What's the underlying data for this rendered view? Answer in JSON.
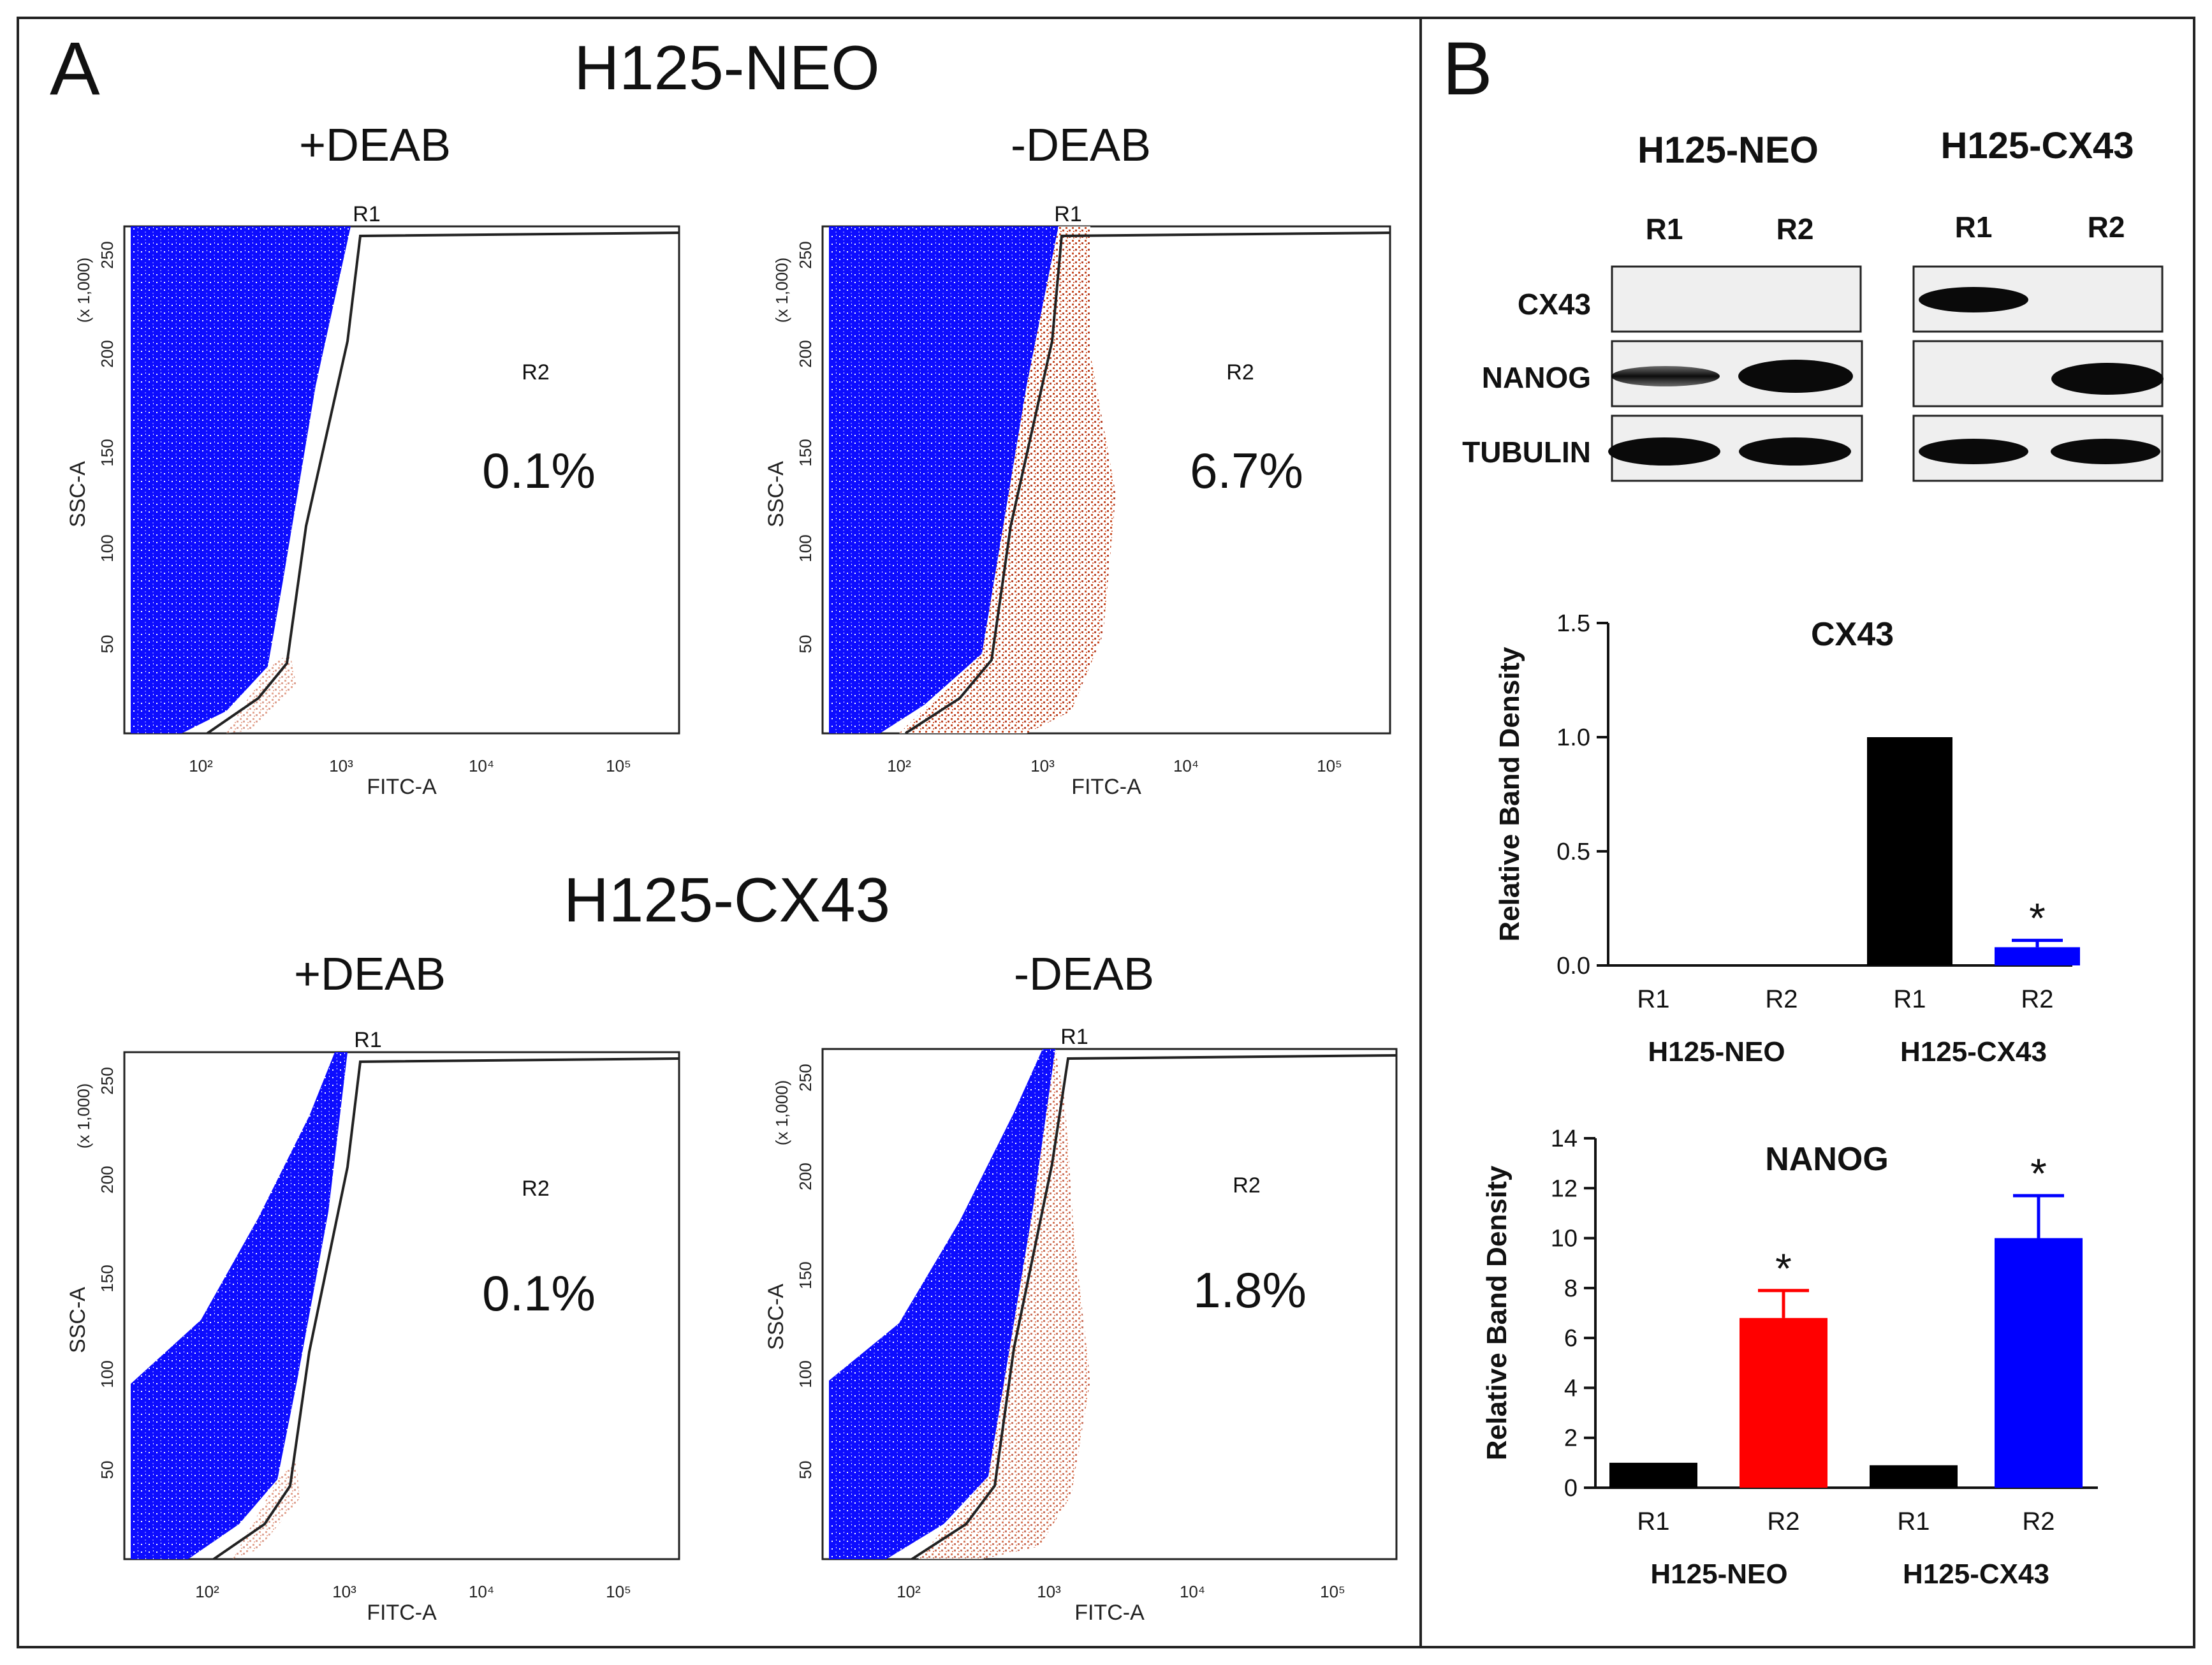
{
  "panels": {
    "a_label": "A",
    "b_label": "B"
  },
  "flow": {
    "cell_lines": [
      "H125-NEO",
      "H125-CX43"
    ],
    "conditions": [
      "+DEAB",
      "-DEAB"
    ],
    "x_axis_label": "FITC-A",
    "y_axis_label": "SSC-A",
    "y_scale_note": "(x 1,000)",
    "y_ticks": [
      "50",
      "100",
      "150",
      "200",
      "250"
    ],
    "x_ticks": [
      "10²",
      "10³",
      "10⁴",
      "10⁵"
    ],
    "gate_labels": [
      "R1",
      "R2"
    ],
    "plots": [
      {
        "cell_line": "H125-NEO",
        "condition": "+DEAB",
        "r2_percent": "0.1%",
        "r2_fraction": 0.001
      },
      {
        "cell_line": "H125-NEO",
        "condition": "-DEAB",
        "r2_percent": "6.7%",
        "r2_fraction": 0.067
      },
      {
        "cell_line": "H125-CX43",
        "condition": "+DEAB",
        "r2_percent": "0.1%",
        "r2_fraction": 0.001
      },
      {
        "cell_line": "H125-CX43",
        "condition": "-DEAB",
        "r2_percent": "1.8%",
        "r2_fraction": 0.018
      }
    ],
    "colors": {
      "r1_population": "#1a1aff",
      "r2_population": "#c8502a"
    }
  },
  "western_blot": {
    "groups": [
      "H125-NEO",
      "H125-CX43"
    ],
    "lanes": [
      "R1",
      "R2"
    ],
    "rows": [
      "CX43",
      "NANOG",
      "TUBULIN"
    ]
  },
  "chart_data": [
    {
      "type": "bar",
      "title": "CX43",
      "ylabel": "Relative Band Density",
      "xlabel": "",
      "ylim": [
        0,
        1.5
      ],
      "yticks": [
        0.0,
        0.5,
        1.0,
        1.5
      ],
      "ytick_labels": [
        "0.0",
        "0.5",
        "1.0",
        "1.5"
      ],
      "categories": [
        "R1",
        "R2",
        "R1",
        "R2"
      ],
      "groups": [
        "H125-NEO",
        "H125-CX43"
      ],
      "values": [
        0,
        0,
        1.0,
        0.08
      ],
      "errors": [
        0,
        0,
        0,
        0.03
      ],
      "significance": [
        "",
        "",
        "",
        "*"
      ],
      "colors": [
        "#000000",
        "#ff0000",
        "#000000",
        "#0000ff"
      ]
    },
    {
      "type": "bar",
      "title": "NANOG",
      "ylabel": "Relative Band Density",
      "xlabel": "",
      "ylim": [
        0,
        14
      ],
      "yticks": [
        0,
        2,
        4,
        6,
        8,
        10,
        12,
        14
      ],
      "ytick_labels": [
        "0",
        "2",
        "4",
        "6",
        "8",
        "10",
        "12",
        "14"
      ],
      "categories": [
        "R1",
        "R2",
        "R1",
        "R2"
      ],
      "groups": [
        "H125-NEO",
        "H125-CX43"
      ],
      "values": [
        1.0,
        6.8,
        0.9,
        10.0
      ],
      "errors": [
        0,
        1.1,
        0,
        1.7
      ],
      "significance": [
        "",
        "*",
        "",
        "*"
      ],
      "colors": [
        "#000000",
        "#ff0000",
        "#000000",
        "#0000ff"
      ]
    }
  ]
}
